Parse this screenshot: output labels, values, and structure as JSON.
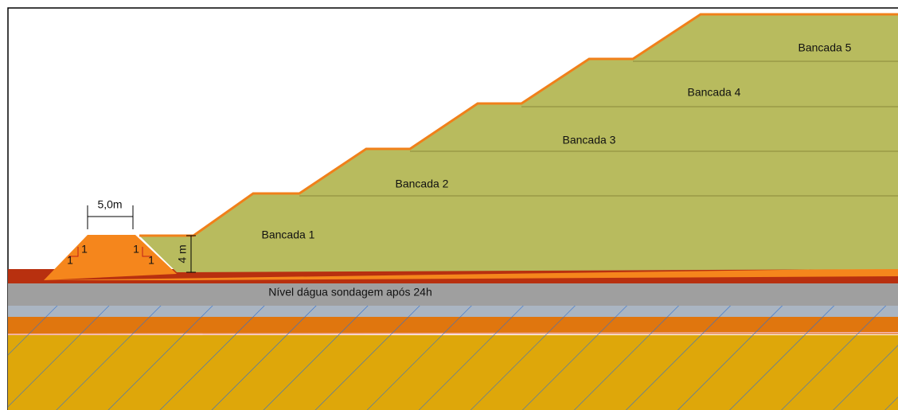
{
  "dimensions": {
    "crest_width": "5,0m",
    "slope_left_vertical": "1",
    "slope_left_horizontal": "1",
    "slope_right_vertical": "1",
    "slope_right_horizontal": "1",
    "bench_height": "4 m"
  },
  "benches": [
    "Bancada 1",
    "Bancada 2",
    "Bancada 3",
    "Bancada 4",
    "Bancada 5"
  ],
  "water_level": "Nível dágua sondagem após 24h"
}
